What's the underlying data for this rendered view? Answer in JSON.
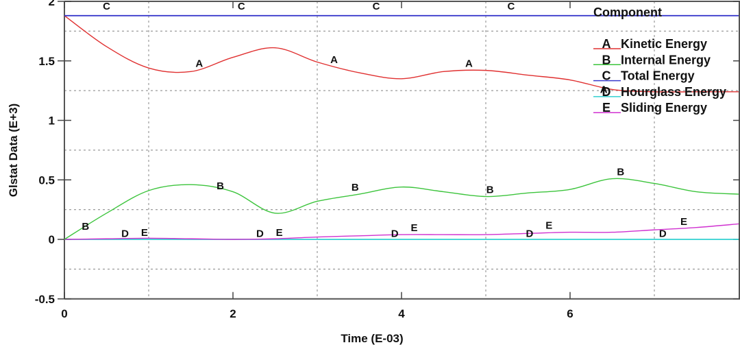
{
  "chart_data": {
    "type": "line",
    "title": "",
    "xlabel": "Time (E-03)",
    "ylabel": "Glstat Data (E+3)",
    "xlim": [
      0,
      8
    ],
    "ylim": [
      -0.5,
      2
    ],
    "x_ticks": [
      "0",
      "2",
      "4",
      "6"
    ],
    "y_ticks": [
      "-0.5",
      "0",
      "0.5",
      "1",
      "1.5",
      "2"
    ],
    "grid": true,
    "legend": {
      "title": "Component",
      "position": "upper right",
      "entries": [
        {
          "key": "A",
          "label": "Kinetic Energy",
          "color": "#e03030"
        },
        {
          "key": "B",
          "label": "Internal Energy",
          "color": "#3cc43c"
        },
        {
          "key": "C",
          "label": "Total Energy",
          "color": "#3a3acc"
        },
        {
          "key": "D",
          "label": "Hourglass Energy",
          "color": "#30d0d0"
        },
        {
          "key": "E",
          "label": "Sliding Energy",
          "color": "#d030d0"
        }
      ]
    },
    "x": [
      0,
      0.5,
      1.0,
      1.5,
      2.0,
      2.5,
      3.0,
      3.5,
      4.0,
      4.5,
      5.0,
      5.5,
      6.0,
      6.5,
      7.0,
      7.5,
      8.0
    ],
    "series": [
      {
        "name": "Kinetic Energy",
        "key": "A",
        "values": [
          1.88,
          1.62,
          1.44,
          1.41,
          1.53,
          1.61,
          1.49,
          1.4,
          1.35,
          1.41,
          1.42,
          1.38,
          1.34,
          1.26,
          1.24,
          1.24,
          1.24
        ]
      },
      {
        "name": "Internal Energy",
        "key": "B",
        "values": [
          0.0,
          0.22,
          0.41,
          0.46,
          0.4,
          0.22,
          0.32,
          0.38,
          0.44,
          0.4,
          0.36,
          0.39,
          0.42,
          0.51,
          0.47,
          0.4,
          0.38
        ]
      },
      {
        "name": "Total Energy",
        "key": "C",
        "values": [
          1.88,
          1.88,
          1.88,
          1.88,
          1.88,
          1.88,
          1.88,
          1.88,
          1.88,
          1.88,
          1.88,
          1.88,
          1.88,
          1.88,
          1.88,
          1.88,
          1.88
        ]
      },
      {
        "name": "Hourglass Energy",
        "key": "D",
        "values": [
          0,
          0,
          0,
          0,
          0,
          0,
          0,
          0,
          0,
          0,
          0,
          0,
          0,
          0,
          0,
          0,
          0
        ]
      },
      {
        "name": "Sliding Energy",
        "key": "E",
        "values": [
          0.0,
          0.005,
          0.01,
          0.005,
          0.0,
          0.005,
          0.02,
          0.03,
          0.04,
          0.04,
          0.04,
          0.05,
          0.06,
          0.06,
          0.08,
          0.1,
          0.13
        ]
      }
    ],
    "curve_markers": {
      "A": [
        [
          1.6,
          1.45
        ],
        [
          3.2,
          1.48
        ],
        [
          4.8,
          1.45
        ],
        [
          6.4,
          1.23
        ]
      ],
      "B": [
        [
          0.25,
          0.08
        ],
        [
          1.85,
          0.42
        ],
        [
          3.45,
          0.41
        ],
        [
          5.05,
          0.39
        ],
        [
          6.6,
          0.54
        ]
      ],
      "C": [
        [
          0.5,
          1.93
        ],
        [
          2.1,
          1.93
        ],
        [
          3.7,
          1.93
        ],
        [
          5.3,
          1.93
        ]
      ],
      "D": [
        [
          0.72,
          0.02
        ],
        [
          2.32,
          0.02
        ],
        [
          3.92,
          0.02
        ],
        [
          5.52,
          0.02
        ],
        [
          7.1,
          0.02
        ]
      ],
      "E": [
        [
          0.95,
          0.03
        ],
        [
          2.55,
          0.03
        ],
        [
          4.15,
          0.07
        ],
        [
          5.75,
          0.09
        ],
        [
          7.35,
          0.12
        ]
      ]
    }
  }
}
